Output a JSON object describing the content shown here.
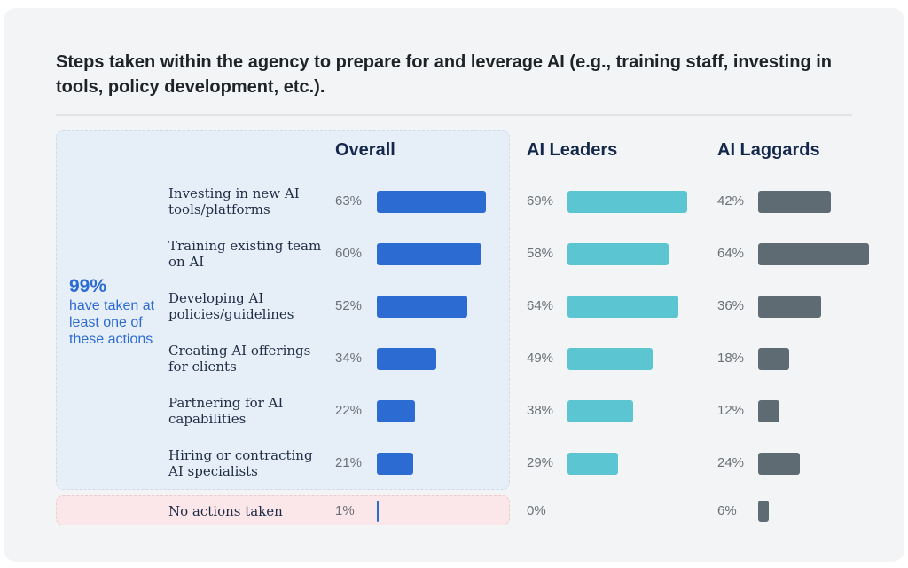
{
  "title": "Steps taken within the agency to prepare for and leverage AI (e.g., training staff, investing in tools, policy development, etc.).",
  "callout": {
    "value": "99%",
    "text": "have taken at least one of these actions"
  },
  "colors": {
    "overall": "#2c6bd1",
    "leaders": "#5bc6d1",
    "laggards": "#5f6b72"
  },
  "chart_data": {
    "type": "bar",
    "title": "Steps taken within the agency to prepare for and leverage AI (e.g., training staff, investing in tools, policy development, etc.).",
    "orientation": "horizontal",
    "categories": [
      "Investing in new AI tools/platforms",
      "Training existing team on AI",
      "Developing AI policies/guidelines",
      "Creating AI offerings for clients",
      "Partnering for AI capabilities",
      "Hiring or contracting AI specialists",
      "No actions taken"
    ],
    "series": [
      {
        "name": "Overall",
        "values": [
          63,
          60,
          52,
          34,
          22,
          21,
          1
        ]
      },
      {
        "name": "AI Leaders",
        "values": [
          69,
          58,
          64,
          49,
          38,
          29,
          0
        ]
      },
      {
        "name": "AI Laggards",
        "values": [
          42,
          64,
          36,
          18,
          12,
          24,
          6
        ]
      }
    ],
    "labels": [
      [
        "63%",
        "60%",
        "52%",
        "34%",
        "22%",
        "21%",
        "1%"
      ],
      [
        "69%",
        "58%",
        "64%",
        "49%",
        "38%",
        "29%",
        "0%"
      ],
      [
        "42%",
        "64%",
        "36%",
        "18%",
        "12%",
        "24%",
        "6%"
      ]
    ],
    "unit": "%",
    "xlim": [
      0,
      100
    ],
    "grid": false,
    "legend": "none"
  }
}
